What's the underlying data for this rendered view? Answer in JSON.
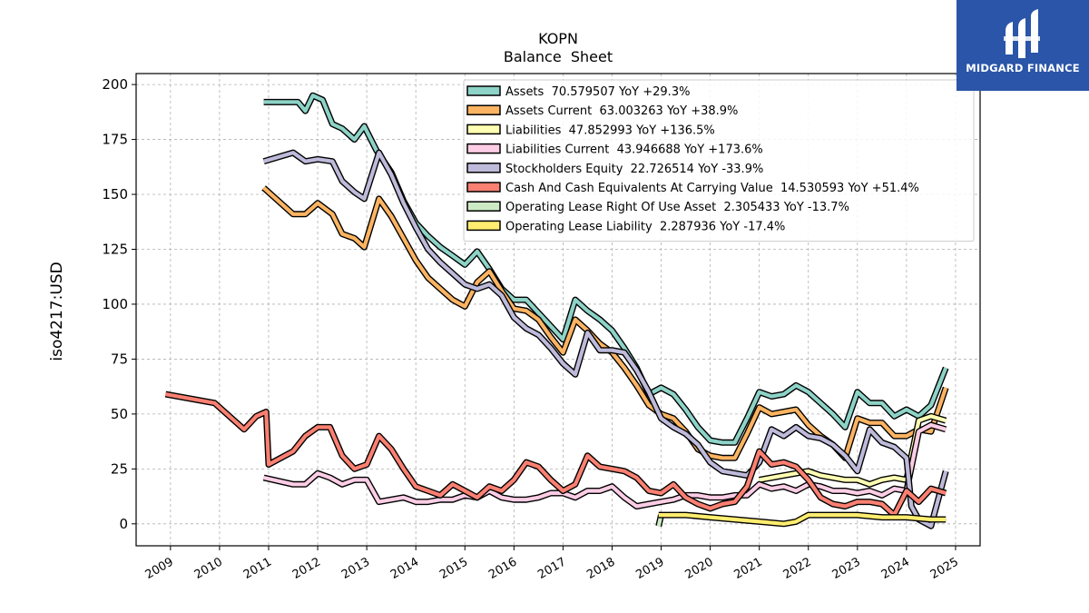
{
  "brand": {
    "name": "MIDGARD FINANCE",
    "bg_color": "#2a55a8"
  },
  "chart_data": {
    "type": "line",
    "title": "KOPN",
    "subtitle": "Balance  Sheet",
    "ylabel": "iso4217:USD",
    "xlabel": "",
    "ylim": [
      -10,
      205
    ],
    "xlim": [
      2008.3,
      2025.5
    ],
    "yticks": [
      0,
      25,
      50,
      75,
      100,
      125,
      150,
      175,
      200
    ],
    "xticks": [
      "2009",
      "2010",
      "2011",
      "2012",
      "2013",
      "2014",
      "2015",
      "2016",
      "2017",
      "2018",
      "2019",
      "2020",
      "2021",
      "2022",
      "2023",
      "2024",
      "2025"
    ],
    "grid": true,
    "legend_position": "top-right",
    "series": [
      {
        "name": "Assets",
        "label": "Assets  70.579507 YoY +29.3%",
        "color": "#8dd3c7",
        "x": [
          2010.9,
          2011.4,
          2011.6,
          2011.75,
          2011.9,
          2012.1,
          2012.3,
          2012.5,
          2012.75,
          2012.95,
          2013.2,
          2013.5,
          2013.75,
          2014.0,
          2014.25,
          2014.5,
          2014.75,
          2015.0,
          2015.25,
          2015.5,
          2015.75,
          2016.0,
          2016.25,
          2016.5,
          2016.75,
          2017.0,
          2017.25,
          2017.5,
          2017.75,
          2018.0,
          2018.25,
          2018.5,
          2018.75,
          2019.0,
          2019.25,
          2019.5,
          2019.75,
          2020.0,
          2020.25,
          2020.5,
          2020.75,
          2021.0,
          2021.25,
          2021.5,
          2021.75,
          2022.0,
          2022.25,
          2022.5,
          2022.75,
          2023.0,
          2023.25,
          2023.5,
          2023.75,
          2024.0,
          2024.25,
          2024.5,
          2024.8
        ],
        "y": [
          192,
          192,
          192,
          188,
          195,
          193,
          182,
          180,
          175,
          181,
          170,
          160,
          147,
          137,
          131,
          126,
          122,
          118,
          124,
          116,
          107,
          102,
          102,
          96,
          90,
          84,
          102,
          97,
          93,
          88,
          80,
          71,
          59,
          62,
          59,
          52,
          44,
          38,
          37,
          37,
          48,
          60,
          58,
          59,
          63,
          60,
          55,
          50,
          44,
          60,
          55,
          55,
          49,
          52,
          49,
          54,
          71
        ]
      },
      {
        "name": "Assets Current",
        "label": "Assets Current  63.003263 YoY +38.9%",
        "color": "#fdb462",
        "x": [
          2010.9,
          2011.5,
          2011.75,
          2012.0,
          2012.3,
          2012.5,
          2012.75,
          2012.95,
          2013.25,
          2013.5,
          2013.75,
          2014.0,
          2014.25,
          2014.5,
          2014.75,
          2015.0,
          2015.25,
          2015.5,
          2015.75,
          2016.0,
          2016.25,
          2016.5,
          2016.75,
          2017.0,
          2017.25,
          2017.5,
          2017.75,
          2018.0,
          2018.25,
          2018.5,
          2018.75,
          2019.0,
          2019.25,
          2019.5,
          2019.75,
          2020.0,
          2020.25,
          2020.5,
          2020.75,
          2021.0,
          2021.25,
          2021.5,
          2021.75,
          2022.0,
          2022.25,
          2022.5,
          2022.75,
          2023.0,
          2023.25,
          2023.5,
          2023.75,
          2024.0,
          2024.25,
          2024.5,
          2024.8
        ],
        "y": [
          153,
          141,
          141,
          146,
          141,
          132,
          130,
          126,
          148,
          140,
          130,
          120,
          112,
          107,
          102,
          99,
          110,
          115,
          106,
          98,
          97,
          93,
          85,
          78,
          93,
          88,
          82,
          78,
          71,
          63,
          54,
          50,
          48,
          42,
          34,
          31,
          30,
          30,
          41,
          53,
          50,
          51,
          52,
          45,
          40,
          36,
          30,
          48,
          46,
          46,
          40,
          40,
          43,
          42,
          62
        ]
      },
      {
        "name": "Liabilities",
        "label": "Liabilities  47.852993 YoY +136.5%",
        "color": "#ffffb3",
        "x": [
          2021.0,
          2021.25,
          2021.5,
          2021.75,
          2022.0,
          2022.25,
          2022.5,
          2022.75,
          2023.0,
          2023.25,
          2023.5,
          2023.75,
          2024.0,
          2024.25,
          2024.5,
          2024.8
        ],
        "y": [
          20,
          21,
          22,
          23,
          24,
          22,
          21,
          20,
          20,
          18,
          20,
          21,
          20,
          47,
          49,
          47
        ]
      },
      {
        "name": "Liabilities Current",
        "label": "Liabilities Current  43.946688 YoY +173.6%",
        "color": "#fccde5",
        "x": [
          2010.9,
          2011.5,
          2011.75,
          2012.0,
          2012.25,
          2012.5,
          2012.75,
          2013.0,
          2013.25,
          2013.5,
          2013.75,
          2014.0,
          2014.25,
          2014.5,
          2014.75,
          2015.0,
          2015.25,
          2015.5,
          2015.75,
          2016.0,
          2016.25,
          2016.5,
          2016.75,
          2017.0,
          2017.25,
          2017.5,
          2017.75,
          2018.0,
          2018.25,
          2018.5,
          2018.75,
          2019.0,
          2019.25,
          2019.5,
          2019.75,
          2020.0,
          2020.25,
          2020.5,
          2020.75,
          2021.0,
          2021.25,
          2021.5,
          2021.75,
          2022.0,
          2022.25,
          2022.5,
          2022.75,
          2023.0,
          2023.25,
          2023.5,
          2023.75,
          2024.0,
          2024.25,
          2024.5,
          2024.8
        ],
        "y": [
          21,
          18,
          18,
          23,
          21,
          18,
          20,
          20,
          10,
          11,
          12,
          10,
          10,
          11,
          11,
          13,
          12,
          15,
          12,
          11,
          11,
          12,
          14,
          14,
          12,
          15,
          15,
          17,
          12,
          8,
          9,
          10,
          11,
          13,
          13,
          12,
          12,
          13,
          13,
          18,
          16,
          17,
          15,
          18,
          17,
          15,
          15,
          14,
          15,
          13,
          16,
          15,
          42,
          45,
          43
        ]
      },
      {
        "name": "Stockholders Equity",
        "label": "Stockholders Equity  22.726514 YoY -33.9%",
        "color": "#bebada",
        "x": [
          2010.9,
          2011.5,
          2011.75,
          2012.0,
          2012.3,
          2012.5,
          2012.75,
          2012.95,
          2013.25,
          2013.5,
          2013.75,
          2014.0,
          2014.25,
          2014.5,
          2014.75,
          2015.0,
          2015.25,
          2015.5,
          2015.75,
          2016.0,
          2016.25,
          2016.5,
          2016.75,
          2017.0,
          2017.25,
          2017.5,
          2017.75,
          2018.0,
          2018.25,
          2018.5,
          2018.75,
          2019.0,
          2019.25,
          2019.5,
          2019.75,
          2020.0,
          2020.25,
          2020.5,
          2020.75,
          2021.0,
          2021.25,
          2021.5,
          2021.75,
          2022.0,
          2022.25,
          2022.5,
          2022.75,
          2023.0,
          2023.25,
          2023.5,
          2023.75,
          2024.0,
          2024.1,
          2024.25,
          2024.5,
          2024.8
        ],
        "y": [
          165,
          169,
          165,
          166,
          165,
          156,
          151,
          148,
          169,
          159,
          146,
          135,
          125,
          119,
          114,
          109,
          107,
          109,
          104,
          94,
          89,
          86,
          80,
          73,
          68,
          87,
          79,
          79,
          78,
          70,
          60,
          48,
          44,
          41,
          36,
          28,
          24,
          23,
          22,
          28,
          43,
          40,
          44,
          40,
          39,
          36,
          31,
          24,
          43,
          37,
          35,
          30,
          8,
          2,
          -1,
          24
        ]
      },
      {
        "name": "Cash And Cash Equivalents At Carrying Value",
        "label": "Cash And Cash Equivalents At Carrying Value  14.530593 YoY +51.4%",
        "color": "#fb8072",
        "x": [
          2008.9,
          2009.9,
          2010.5,
          2010.75,
          2010.95,
          2011.0,
          2011.5,
          2011.75,
          2012.0,
          2012.25,
          2012.5,
          2012.75,
          2013.0,
          2013.25,
          2013.5,
          2013.75,
          2014.0,
          2014.25,
          2014.5,
          2014.75,
          2015.0,
          2015.25,
          2015.5,
          2015.75,
          2016.0,
          2016.25,
          2016.5,
          2016.75,
          2017.0,
          2017.25,
          2017.5,
          2017.75,
          2018.0,
          2018.25,
          2018.5,
          2018.75,
          2019.0,
          2019.25,
          2019.5,
          2019.75,
          2020.0,
          2020.25,
          2020.5,
          2020.75,
          2021.0,
          2021.25,
          2021.5,
          2021.75,
          2022.0,
          2022.25,
          2022.5,
          2022.75,
          2023.0,
          2023.25,
          2023.5,
          2023.75,
          2024.0,
          2024.25,
          2024.5,
          2024.8
        ],
        "y": [
          59,
          55,
          43,
          49,
          51,
          27,
          33,
          40,
          44,
          44,
          31,
          25,
          27,
          40,
          34,
          25,
          17,
          15,
          13,
          18,
          15,
          12,
          17,
          15,
          20,
          28,
          26,
          20,
          15,
          18,
          31,
          26,
          25,
          24,
          21,
          15,
          14,
          18,
          12,
          9,
          7,
          9,
          10,
          17,
          33,
          27,
          28,
          26,
          20,
          12,
          9,
          8,
          10,
          10,
          9,
          4,
          15,
          10,
          16,
          14
        ]
      },
      {
        "name": "Operating Lease Right Of Use Asset",
        "label": "Operating Lease Right Of Use Asset  2.305433 YoY -13.7%",
        "color": "#ccebc5",
        "x": [
          2018.95,
          2019.0
        ],
        "y": [
          -1,
          4
        ]
      },
      {
        "name": "Operating Lease Liability",
        "label": "Operating Lease Liability  2.287936 YoY -17.4%",
        "color": "#ffed6f",
        "x": [
          2018.95,
          2019.5,
          2020.0,
          2020.5,
          2021.0,
          2021.5,
          2021.75,
          2022.0,
          2022.5,
          2023.0,
          2023.5,
          2024.0,
          2024.5,
          2024.8
        ],
        "y": [
          4,
          4,
          3,
          2,
          1,
          0,
          1,
          4,
          4,
          4,
          3,
          3,
          2,
          2
        ]
      }
    ]
  }
}
